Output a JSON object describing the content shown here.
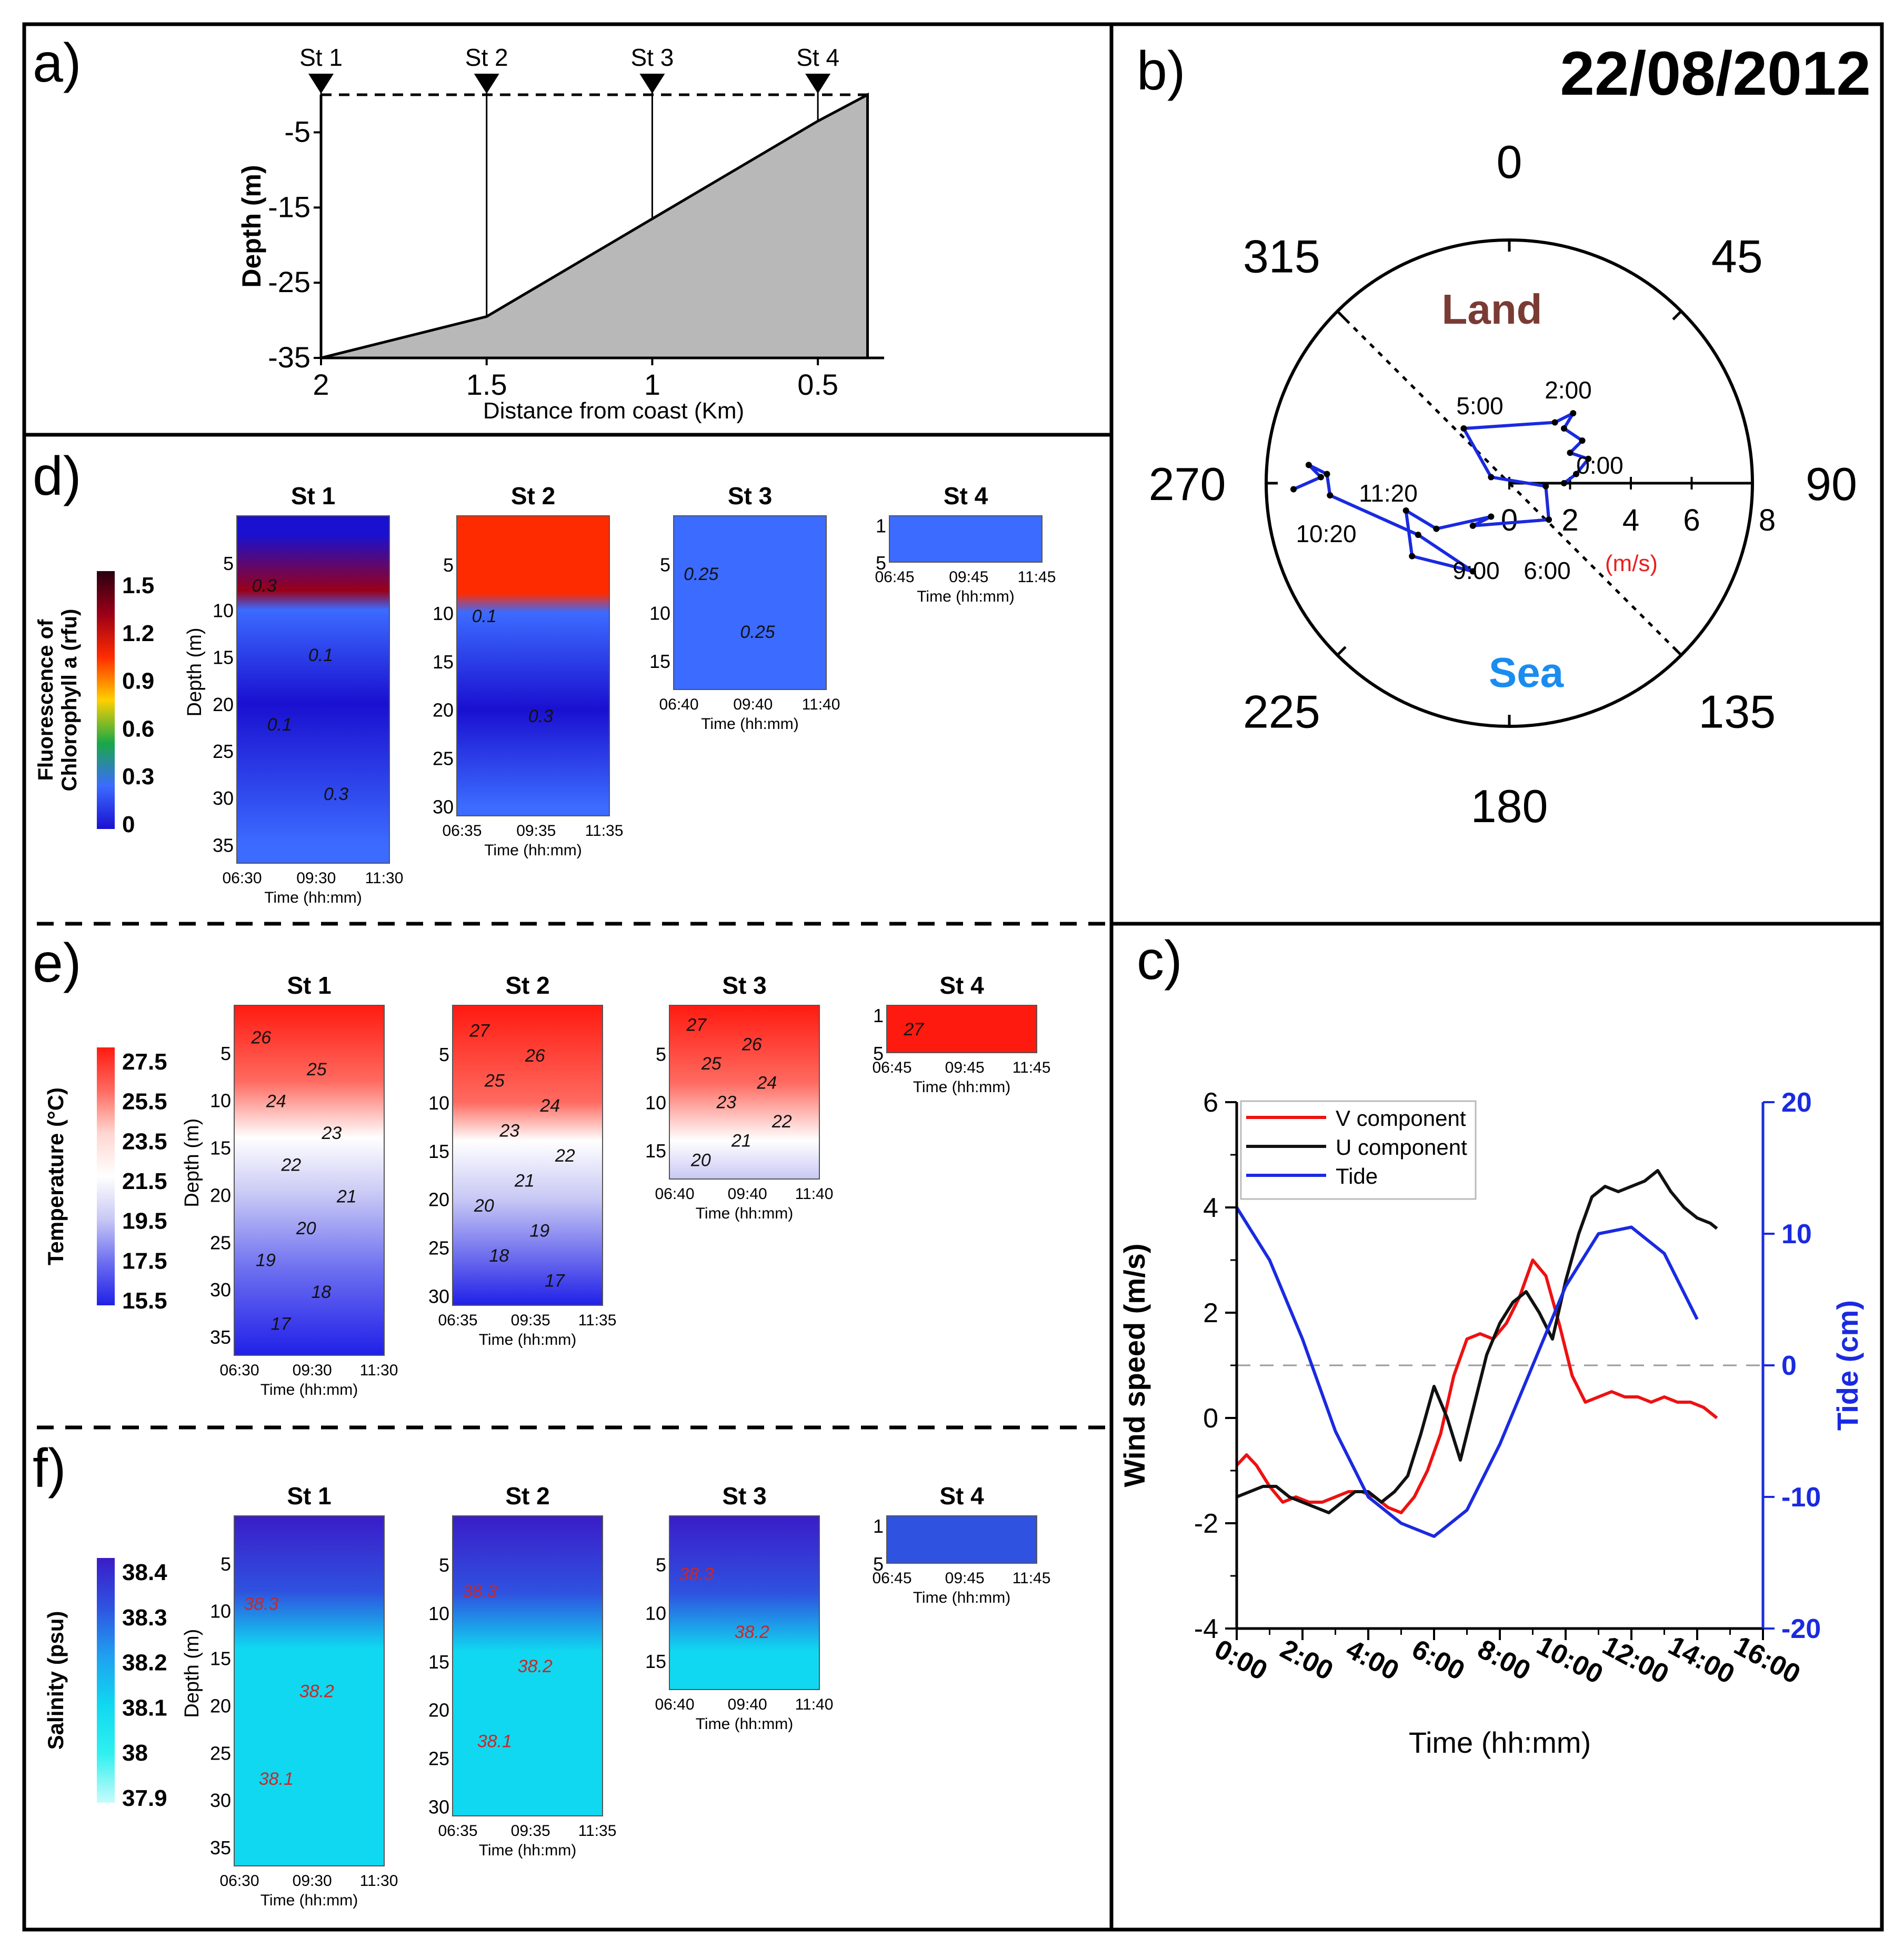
{
  "figure_title": "22/08/2012",
  "panel_letters": {
    "a": "a)",
    "b": "b)",
    "c": "c)",
    "d": "d)",
    "e": "e)",
    "f": "f)"
  },
  "panel_a": {
    "stations": [
      "St 1",
      "St 2",
      "St 3",
      "St 4"
    ],
    "xlabel": "Distance from coast (Km)",
    "ylabel": "Depth (m)",
    "xticks": [
      "2",
      "1.5",
      "1",
      "0.5"
    ],
    "yticks": [
      "-5",
      "-15",
      "-25",
      "-35"
    ]
  },
  "panel_b": {
    "land_label": "Land",
    "sea_label": "Sea",
    "unit_label": "(m/s)",
    "bearing_labels": [
      "0",
      "45",
      "90",
      "135",
      "180",
      "225",
      "270",
      "315"
    ],
    "radial_ticks": [
      "0",
      "2",
      "4",
      "6",
      "8"
    ],
    "time_labels": [
      "0:00",
      "2:00",
      "5:00",
      "6:00",
      "9:00",
      "10:20",
      "11:20"
    ]
  },
  "panel_c": {
    "xlabel": "Time (hh:mm)",
    "ylabel_left": "Wind speed (m/s)",
    "ylabel_right": "Tide (cm)",
    "xticks": [
      "0:00",
      "2:00",
      "4:00",
      "6:00",
      "8:00",
      "10:00",
      "12:00",
      "14:00",
      "16:00"
    ],
    "yticks_left": [
      "6",
      "4",
      "2",
      "0",
      "-2",
      "-4"
    ],
    "yticks_right": [
      "20",
      "10",
      "0",
      "-10",
      "-20"
    ],
    "legend": [
      "V component",
      "U component",
      "Tide"
    ]
  },
  "sections": [
    {
      "key": "d",
      "colorbar_label_1": "Fluorescence of",
      "colorbar_label_2": "Chlorophyll a (rfu)",
      "colorbar_ticks": [
        "1.5",
        "1.2",
        "0.9",
        "0.6",
        "0.3",
        "0"
      ],
      "colorbar_stops": [
        "#2a0010",
        "#9a0018",
        "#ff2b00",
        "#ffd000",
        "#19a847",
        "#3c6bff",
        "#1a10d0"
      ],
      "plots": [
        {
          "title": "St 1",
          "ylabel": "Depth (m)",
          "yticks": [
            "5",
            "10",
            "15",
            "20",
            "25",
            "30",
            "35"
          ],
          "xticks": [
            "06:30",
            "09:30",
            "11:30"
          ],
          "xlabel": "Time (hh:mm)",
          "contour_labels": [
            "0.3",
            "0.1",
            "0.1",
            "0.3"
          ]
        },
        {
          "title": "St 2",
          "ylabel": "",
          "yticks": [
            "5",
            "10",
            "15",
            "20",
            "25",
            "30"
          ],
          "xticks": [
            "06:35",
            "09:35",
            "11:35"
          ],
          "xlabel": "Time (hh:mm)",
          "contour_labels": [
            "0.1",
            "0.3"
          ]
        },
        {
          "title": "St 3",
          "ylabel": "",
          "yticks": [
            "5",
            "10",
            "15"
          ],
          "xticks": [
            "06:40",
            "09:40",
            "11:40"
          ],
          "xlabel": "Time (hh:mm)",
          "contour_labels": [
            "0.25",
            "0.25"
          ]
        },
        {
          "title": "St 4",
          "ylabel": "",
          "yticks": [
            "1",
            "5"
          ],
          "xticks": [
            "06:45",
            "09:45",
            "11:45"
          ],
          "xlabel": "Time (hh:mm)",
          "contour_labels": []
        }
      ]
    },
    {
      "key": "e",
      "colorbar_label_1": "",
      "colorbar_label_2": "Temperature (°C)",
      "colorbar_ticks": [
        "27.5",
        "25.5",
        "23.5",
        "21.5",
        "19.5",
        "17.5",
        "15.5"
      ],
      "colorbar_stops": [
        "#ff1a10",
        "#ff6a60",
        "#ffd6d0",
        "#ffffff",
        "#c8c8f5",
        "#6c6ef0",
        "#2020e8"
      ],
      "plots": [
        {
          "title": "St 1",
          "ylabel": "Depth (m)",
          "yticks": [
            "5",
            "10",
            "15",
            "20",
            "25",
            "30",
            "35"
          ],
          "xticks": [
            "06:30",
            "09:30",
            "11:30"
          ],
          "xlabel": "Time (hh:mm)",
          "contour_labels": [
            "26",
            "25",
            "24",
            "23",
            "22",
            "21",
            "20",
            "19",
            "18",
            "17"
          ]
        },
        {
          "title": "St 2",
          "ylabel": "",
          "yticks": [
            "5",
            "10",
            "15",
            "20",
            "25",
            "30"
          ],
          "xticks": [
            "06:35",
            "09:35",
            "11:35"
          ],
          "xlabel": "Time (hh:mm)",
          "contour_labels": [
            "27",
            "26",
            "25",
            "24",
            "23",
            "22",
            "21",
            "20",
            "19",
            "18",
            "17"
          ]
        },
        {
          "title": "St 3",
          "ylabel": "",
          "yticks": [
            "5",
            "10",
            "15"
          ],
          "xticks": [
            "06:40",
            "09:40",
            "11:40"
          ],
          "xlabel": "Time (hh:mm)",
          "contour_labels": [
            "27",
            "26",
            "25",
            "24",
            "23",
            "22",
            "21",
            "20"
          ]
        },
        {
          "title": "St 4",
          "ylabel": "",
          "yticks": [
            "1",
            "5"
          ],
          "xticks": [
            "06:45",
            "09:45",
            "11:45"
          ],
          "xlabel": "Time (hh:mm)",
          "contour_labels": [
            "27"
          ]
        }
      ]
    },
    {
      "key": "f",
      "colorbar_label_1": "",
      "colorbar_label_2": "Salinity (psu)",
      "colorbar_ticks": [
        "38.4",
        "38.3",
        "38.2",
        "38.1",
        "38",
        "37.9"
      ],
      "colorbar_stops": [
        "#3a1cc8",
        "#2f52e0",
        "#1fa0f0",
        "#10d8f0",
        "#30f0f0",
        "#c8fbfb"
      ],
      "plots": [
        {
          "title": "St 1",
          "ylabel": "Depth (m)",
          "yticks": [
            "5",
            "10",
            "15",
            "20",
            "25",
            "30",
            "35"
          ],
          "xticks": [
            "06:30",
            "09:30",
            "11:30"
          ],
          "xlabel": "Time (hh:mm)",
          "contour_labels": [
            "38.3",
            "38.2",
            "38.1"
          ]
        },
        {
          "title": "St 2",
          "ylabel": "",
          "yticks": [
            "5",
            "10",
            "15",
            "20",
            "25",
            "30"
          ],
          "xticks": [
            "06:35",
            "09:35",
            "11:35"
          ],
          "xlabel": "Time (hh:mm)",
          "contour_labels": [
            "38.3",
            "38.2",
            "38.1"
          ]
        },
        {
          "title": "St 3",
          "ylabel": "",
          "yticks": [
            "5",
            "10",
            "15"
          ],
          "xticks": [
            "06:40",
            "09:40",
            "11:40"
          ],
          "xlabel": "Time (hh:mm)",
          "contour_labels": [
            "38.3",
            "38.2"
          ]
        },
        {
          "title": "St 4",
          "ylabel": "",
          "yticks": [
            "1",
            "5"
          ],
          "xticks": [
            "06:45",
            "09:45",
            "11:45"
          ],
          "xlabel": "Time (hh:mm)",
          "contour_labels": []
        }
      ]
    }
  ],
  "colors": {
    "land": "#7a3b35",
    "sea": "#1a8cf0",
    "unit": "#e82020",
    "v_component": "#ee1111",
    "u_component": "#111111",
    "tide": "#1a2ae0",
    "tide_axis": "#1a2ae0",
    "seabed": "#b8b8b8"
  },
  "chart_data": [
    {
      "panel": "a",
      "type": "area",
      "title": "",
      "xlabel": "Distance from coast (Km)",
      "ylabel": "Depth (m)",
      "xlim": [
        2,
        0.3
      ],
      "ylim": [
        -35,
        0
      ],
      "seabed_profile": [
        [
          2,
          -35
        ],
        [
          1.5,
          -29.5
        ],
        [
          1,
          -16.5
        ],
        [
          0.5,
          -3.5
        ],
        [
          0.35,
          0
        ]
      ],
      "stations": [
        {
          "name": "St 1",
          "distance": 2,
          "bottom_depth": -35
        },
        {
          "name": "St 2",
          "distance": 1.5,
          "bottom_depth": -29.5
        },
        {
          "name": "St 3",
          "distance": 1,
          "bottom_depth": -16.5
        },
        {
          "name": "St 4",
          "distance": 0.5,
          "bottom_depth": -3.5
        }
      ]
    },
    {
      "panel": "b",
      "type": "line",
      "title": "22/08/2012",
      "coordinate_system": "polar (bearing in degrees, wind speed in m/s)",
      "rlim": [
        0,
        8
      ],
      "coast_line_bearing": [
        315,
        135
      ],
      "progressive_vector_xy": [
        [
          1.8,
          0
        ],
        [
          2.2,
          0.3
        ],
        [
          2.6,
          0.8
        ],
        [
          2.0,
          1.0
        ],
        [
          2.4,
          1.4
        ],
        [
          1.8,
          1.8
        ],
        [
          2.1,
          2.3
        ],
        [
          1.5,
          2.0
        ],
        [
          -1.5,
          1.8
        ],
        [
          -0.6,
          0.2
        ],
        [
          1.2,
          -0.1
        ],
        [
          1.3,
          -1.2
        ],
        [
          -1.2,
          -1.4
        ],
        [
          -0.6,
          -1.1
        ],
        [
          -2.4,
          -1.5
        ],
        [
          -3.4,
          -0.9
        ],
        [
          -3.2,
          -2.4
        ],
        [
          -1.2,
          -2.9
        ],
        [
          -3.0,
          -1.7
        ],
        [
          -5.9,
          -0.4
        ],
        [
          -6.0,
          0.3
        ],
        [
          -6.6,
          0.6
        ],
        [
          -6.2,
          0.2
        ],
        [
          -7.1,
          -0.2
        ]
      ]
    },
    {
      "panel": "c",
      "type": "line",
      "title": "",
      "xlabel": "Time (hh:mm)",
      "ylabel": "Wind speed (m/s)",
      "y2label": "Tide (cm)",
      "xlim": [
        0,
        16
      ],
      "ylim": [
        -4,
        6
      ],
      "y2lim": [
        -20,
        20
      ],
      "series": [
        {
          "name": "V component",
          "axis": "left",
          "x": [
            0.0,
            0.3,
            0.6,
            1.0,
            1.4,
            1.8,
            2.2,
            2.6,
            3.0,
            3.4,
            3.8,
            4.2,
            4.6,
            5.0,
            5.4,
            5.8,
            6.2,
            6.6,
            7.0,
            7.4,
            7.8,
            8.2,
            8.6,
            9.0,
            9.4,
            9.8,
            10.2,
            10.6,
            11.0,
            11.4,
            11.8,
            12.2,
            12.6,
            13.0,
            13.4,
            13.8,
            14.2,
            14.6
          ],
          "values": [
            -0.9,
            -0.7,
            -0.9,
            -1.3,
            -1.6,
            -1.5,
            -1.6,
            -1.6,
            -1.5,
            -1.4,
            -1.4,
            -1.5,
            -1.7,
            -1.8,
            -1.5,
            -1.0,
            -0.3,
            0.8,
            1.5,
            1.6,
            1.5,
            1.8,
            2.3,
            3.0,
            2.7,
            1.8,
            0.8,
            0.3,
            0.4,
            0.5,
            0.4,
            0.4,
            0.3,
            0.4,
            0.3,
            0.3,
            0.2,
            0.0
          ]
        },
        {
          "name": "U component",
          "axis": "left",
          "x": [
            0.0,
            0.4,
            0.8,
            1.2,
            1.6,
            2.0,
            2.4,
            2.8,
            3.2,
            3.6,
            4.0,
            4.4,
            4.8,
            5.2,
            5.6,
            6.0,
            6.4,
            6.8,
            7.2,
            7.6,
            8.0,
            8.4,
            8.8,
            9.2,
            9.6,
            10.0,
            10.4,
            10.8,
            11.2,
            11.6,
            12.0,
            12.4,
            12.8,
            13.2,
            13.6,
            14.0,
            14.4,
            14.6
          ],
          "values": [
            -1.5,
            -1.4,
            -1.3,
            -1.3,
            -1.5,
            -1.6,
            -1.7,
            -1.8,
            -1.6,
            -1.4,
            -1.4,
            -1.6,
            -1.4,
            -1.1,
            -0.3,
            0.6,
            0.0,
            -0.8,
            0.2,
            1.2,
            1.8,
            2.2,
            2.4,
            2.0,
            1.5,
            2.6,
            3.5,
            4.2,
            4.4,
            4.3,
            4.4,
            4.5,
            4.7,
            4.3,
            4.0,
            3.8,
            3.7,
            3.6
          ]
        },
        {
          "name": "Tide",
          "axis": "right",
          "x": [
            0,
            1,
            2,
            3,
            4,
            5,
            6,
            7,
            8,
            9,
            10,
            11,
            12,
            13,
            14
          ],
          "values": [
            12,
            8,
            2,
            -5,
            -10,
            -12,
            -13,
            -11,
            -6,
            0,
            6,
            10,
            10.5,
            8.5,
            3.5
          ]
        }
      ]
    },
    {
      "panel": "d",
      "type": "heatmap",
      "title": "",
      "variable": "Fluorescence of Chlorophyll a (rfu)",
      "zlim": [
        0,
        1.5
      ],
      "stations": [
        {
          "name": "St 1",
          "time_range": [
            "06:30",
            "11:30"
          ],
          "depth_range": [
            0,
            37
          ],
          "depth": [
            2,
            8,
            10,
            20,
            35
          ],
          "value": [
            0.1,
            1.2,
            0.3,
            0.1,
            0.3
          ]
        },
        {
          "name": "St 2",
          "time_range": [
            "06:35",
            "11:35"
          ],
          "depth_range": [
            0,
            31
          ],
          "depth": [
            2,
            8,
            10,
            20,
            30
          ],
          "value": [
            1.0,
            1.0,
            0.3,
            0.1,
            0.15
          ]
        },
        {
          "name": "St 3",
          "time_range": [
            "06:40",
            "11:40"
          ],
          "depth_range": [
            0,
            18
          ],
          "depth": [
            3,
            8,
            12,
            17
          ],
          "value": [
            0.2,
            0.3,
            0.25,
            0.25
          ]
        },
        {
          "name": "St 4",
          "time_range": [
            "06:45",
            "11:45"
          ],
          "depth_range": [
            0,
            5
          ],
          "depth": [
            1,
            5
          ],
          "value": [
            0.3,
            0.3
          ]
        }
      ]
    },
    {
      "panel": "e",
      "type": "heatmap",
      "title": "",
      "variable": "Temperature (°C)",
      "zlim": [
        15.5,
        27.5
      ],
      "stations": [
        {
          "name": "St 1",
          "time_range": [
            "06:30",
            "11:30"
          ],
          "depth_range": [
            0,
            37
          ],
          "depth": [
            0,
            8,
            14,
            20,
            28,
            37
          ],
          "value": [
            27.5,
            25.5,
            21.5,
            19.5,
            17,
            15.5
          ]
        },
        {
          "name": "St 2",
          "time_range": [
            "06:35",
            "11:35"
          ],
          "depth_range": [
            0,
            31
          ],
          "depth": [
            0,
            10,
            14,
            20,
            31
          ],
          "value": [
            27.5,
            25,
            21.5,
            19,
            16.5
          ]
        },
        {
          "name": "St 3",
          "time_range": [
            "06:40",
            "11:40"
          ],
          "depth_range": [
            0,
            18
          ],
          "depth": [
            0,
            8,
            14,
            18
          ],
          "value": [
            27.5,
            25.5,
            22,
            20
          ]
        },
        {
          "name": "St 4",
          "time_range": [
            "06:45",
            "11:45"
          ],
          "depth_range": [
            0,
            5
          ],
          "depth": [
            1,
            5
          ],
          "value": [
            27.3,
            27.3
          ]
        }
      ]
    },
    {
      "panel": "f",
      "type": "heatmap",
      "title": "",
      "variable": "Salinity (psu)",
      "zlim": [
        37.9,
        38.4
      ],
      "stations": [
        {
          "name": "St 1",
          "time_range": [
            "06:30",
            "11:30"
          ],
          "depth_range": [
            0,
            37
          ],
          "depth": [
            0,
            8,
            14,
            25,
            37
          ],
          "value": [
            38.4,
            38.3,
            38.15,
            38.1,
            38.1
          ]
        },
        {
          "name": "St 2",
          "time_range": [
            "06:35",
            "11:35"
          ],
          "depth_range": [
            0,
            31
          ],
          "depth": [
            0,
            8,
            14,
            25,
            31
          ],
          "value": [
            38.35,
            38.3,
            38.15,
            38.1,
            38.1
          ]
        },
        {
          "name": "St 3",
          "time_range": [
            "06:40",
            "11:40"
          ],
          "depth_range": [
            0,
            18
          ],
          "depth": [
            0,
            8,
            14,
            18
          ],
          "value": [
            38.35,
            38.3,
            38.15,
            38.1
          ]
        },
        {
          "name": "St 4",
          "time_range": [
            "06:45",
            "11:45"
          ],
          "depth_range": [
            0,
            5
          ],
          "depth": [
            1,
            5
          ],
          "value": [
            38.3,
            38.3
          ]
        }
      ]
    }
  ]
}
